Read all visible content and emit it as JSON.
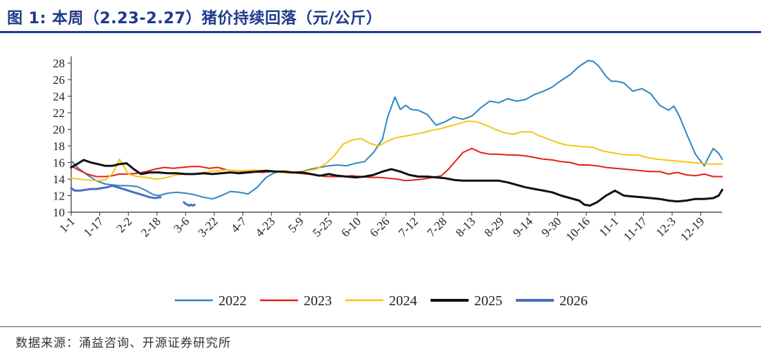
{
  "title": "图 1:  本周（2.23-2.27）猪价持续回落（元/公斤）",
  "source": "数据来源：涌益咨询、开源证券研究所",
  "chart_data": {
    "type": "line",
    "ylabel": "元/公斤",
    "ylim": [
      10,
      28.8
    ],
    "yticks": [
      10,
      12,
      14,
      16,
      18,
      20,
      22,
      24,
      26,
      28
    ],
    "xlim": [
      1,
      365
    ],
    "xticks": [
      {
        "label": "1-1",
        "day": 1
      },
      {
        "label": "1-17",
        "day": 17
      },
      {
        "label": "2-2",
        "day": 33
      },
      {
        "label": "2-18",
        "day": 49
      },
      {
        "label": "3-6",
        "day": 65
      },
      {
        "label": "3-22",
        "day": 81
      },
      {
        "label": "4-7",
        "day": 97
      },
      {
        "label": "4-23",
        "day": 113
      },
      {
        "label": "5-9",
        "day": 129
      },
      {
        "label": "5-25",
        "day": 145
      },
      {
        "label": "6-10",
        "day": 161
      },
      {
        "label": "6-26",
        "day": 177
      },
      {
        "label": "7-12",
        "day": 193
      },
      {
        "label": "7-28",
        "day": 209
      },
      {
        "label": "8-13",
        "day": 225
      },
      {
        "label": "8-29",
        "day": 241
      },
      {
        "label": "9-14",
        "day": 257
      },
      {
        "label": "9-30",
        "day": 273
      },
      {
        "label": "10-16",
        "day": 289
      },
      {
        "label": "11-1",
        "day": 305
      },
      {
        "label": "11-17",
        "day": 321
      },
      {
        "label": "12-3",
        "day": 337
      },
      {
        "label": "12-19",
        "day": 353
      }
    ],
    "series": [
      {
        "name": "2022",
        "color": "#2e86c1",
        "x": [
          1,
          5,
          10,
          15,
          20,
          24,
          28,
          33,
          38,
          43,
          47,
          50,
          55,
          60,
          65,
          70,
          75,
          80,
          85,
          90,
          95,
          100,
          105,
          110,
          115,
          120,
          125,
          130,
          135,
          140,
          145,
          150,
          155,
          160,
          165,
          170,
          175,
          178,
          182,
          185,
          188,
          191,
          195,
          200,
          205,
          210,
          215,
          220,
          225,
          230,
          235,
          240,
          245,
          250,
          255,
          260,
          265,
          270,
          275,
          280,
          285,
          290,
          293,
          296,
          300,
          303,
          306,
          310,
          315,
          320,
          325,
          330,
          335,
          338,
          341,
          345,
          350,
          355,
          357,
          360,
          363,
          365
        ],
        "y": [
          16.2,
          15.3,
          14.5,
          13.8,
          13.4,
          13.3,
          13.2,
          13.2,
          13.1,
          12.6,
          12.1,
          12.0,
          12.3,
          12.4,
          12.3,
          12.1,
          11.8,
          11.6,
          12.0,
          12.5,
          12.4,
          12.2,
          13.0,
          14.2,
          14.8,
          14.9,
          14.8,
          14.9,
          15.2,
          15.4,
          15.6,
          15.7,
          15.6,
          15.9,
          16.1,
          17.2,
          18.8,
          21.5,
          23.9,
          22.4,
          22.9,
          22.4,
          22.3,
          21.8,
          20.5,
          20.9,
          21.5,
          21.2,
          21.6,
          22.6,
          23.4,
          23.2,
          23.7,
          23.4,
          23.6,
          24.2,
          24.6,
          25.1,
          25.9,
          26.6,
          27.6,
          28.3,
          28.2,
          27.6,
          26.4,
          25.8,
          25.8,
          25.6,
          24.6,
          24.9,
          24.3,
          22.9,
          22.3,
          22.8,
          21.6,
          19.5,
          17.0,
          15.6,
          16.5,
          17.7,
          17.1,
          16.4
        ]
      },
      {
        "name": "2023",
        "color": "#e32119",
        "x": [
          1,
          5,
          10,
          15,
          20,
          24,
          28,
          33,
          38,
          43,
          48,
          53,
          58,
          63,
          68,
          73,
          78,
          83,
          88,
          93,
          98,
          103,
          108,
          113,
          118,
          123,
          128,
          133,
          138,
          143,
          148,
          153,
          158,
          163,
          168,
          173,
          178,
          183,
          188,
          193,
          198,
          203,
          208,
          212,
          216,
          220,
          225,
          230,
          235,
          240,
          245,
          250,
          255,
          260,
          265,
          270,
          275,
          280,
          285,
          290,
          295,
          300,
          305,
          310,
          315,
          320,
          325,
          330,
          335,
          340,
          345,
          350,
          355,
          360,
          365
        ],
        "y": [
          15.6,
          15.1,
          14.6,
          14.3,
          14.3,
          14.4,
          14.6,
          14.6,
          14.7,
          14.9,
          15.2,
          15.4,
          15.3,
          15.4,
          15.5,
          15.5,
          15.3,
          15.4,
          15.1,
          15.0,
          14.9,
          14.9,
          14.8,
          14.9,
          14.9,
          14.8,
          14.7,
          14.6,
          14.5,
          14.3,
          14.3,
          14.3,
          14.4,
          14.3,
          14.2,
          14.2,
          14.1,
          14.0,
          13.8,
          13.9,
          14.0,
          14.2,
          14.4,
          15.2,
          16.2,
          17.2,
          17.7,
          17.2,
          17.0,
          17.0,
          16.9,
          16.9,
          16.8,
          16.6,
          16.4,
          16.3,
          16.1,
          16.0,
          15.7,
          15.7,
          15.6,
          15.4,
          15.3,
          15.2,
          15.1,
          15.0,
          14.9,
          14.9,
          14.6,
          14.8,
          14.5,
          14.4,
          14.6,
          14.3,
          14.3
        ]
      },
      {
        "name": "2024",
        "color": "#f5c518",
        "x": [
          1,
          5,
          10,
          15,
          20,
          24,
          28,
          33,
          38,
          43,
          48,
          53,
          58,
          63,
          68,
          73,
          78,
          83,
          88,
          93,
          98,
          103,
          108,
          113,
          118,
          123,
          128,
          133,
          138,
          143,
          148,
          153,
          158,
          163,
          168,
          173,
          178,
          183,
          188,
          193,
          198,
          203,
          208,
          213,
          218,
          223,
          228,
          233,
          238,
          243,
          248,
          253,
          258,
          263,
          268,
          273,
          278,
          283,
          288,
          293,
          298,
          303,
          308,
          313,
          318,
          323,
          328,
          333,
          338,
          343,
          348,
          353,
          358,
          363,
          365
        ],
        "y": [
          14.1,
          14.0,
          13.9,
          13.8,
          13.9,
          14.6,
          16.4,
          14.6,
          14.3,
          14.2,
          14.0,
          14.1,
          14.4,
          14.6,
          14.6,
          14.7,
          14.9,
          15.0,
          15.1,
          15.0,
          15.0,
          15.1,
          15.0,
          14.9,
          14.8,
          14.7,
          14.8,
          15.0,
          15.2,
          15.8,
          16.8,
          18.2,
          18.7,
          18.9,
          18.3,
          18.0,
          18.6,
          19.0,
          19.2,
          19.4,
          19.6,
          19.9,
          20.1,
          20.4,
          20.7,
          21.0,
          20.9,
          20.5,
          20.0,
          19.6,
          19.4,
          19.7,
          19.7,
          19.2,
          18.8,
          18.4,
          18.1,
          18.0,
          17.9,
          17.8,
          17.4,
          17.2,
          17.0,
          16.9,
          16.9,
          16.6,
          16.4,
          16.3,
          16.2,
          16.1,
          16.0,
          15.9,
          15.8,
          15.8,
          15.8
        ]
      },
      {
        "name": "2025",
        "color": "#111111",
        "x": [
          1,
          5,
          8,
          12,
          16,
          20,
          24,
          28,
          32,
          36,
          40,
          45,
          50,
          55,
          60,
          65,
          70,
          75,
          80,
          85,
          90,
          95,
          100,
          105,
          110,
          115,
          120,
          125,
          130,
          135,
          140,
          145,
          150,
          155,
          160,
          165,
          170,
          175,
          180,
          185,
          190,
          195,
          200,
          205,
          210,
          215,
          220,
          225,
          230,
          235,
          240,
          245,
          250,
          255,
          260,
          265,
          270,
          275,
          280,
          285,
          288,
          291,
          295,
          300,
          305,
          310,
          315,
          320,
          325,
          330,
          335,
          340,
          345,
          350,
          355,
          360,
          363,
          365
        ],
        "y": [
          15.4,
          15.9,
          16.3,
          16.0,
          15.8,
          15.6,
          15.6,
          15.8,
          15.9,
          15.2,
          14.6,
          14.8,
          14.8,
          14.7,
          14.7,
          14.6,
          14.6,
          14.7,
          14.6,
          14.7,
          14.8,
          14.7,
          14.8,
          14.9,
          15.0,
          14.9,
          14.9,
          14.8,
          14.8,
          14.6,
          14.4,
          14.6,
          14.4,
          14.3,
          14.2,
          14.3,
          14.5,
          14.9,
          15.2,
          14.9,
          14.5,
          14.3,
          14.3,
          14.2,
          14.1,
          13.9,
          13.8,
          13.8,
          13.8,
          13.8,
          13.8,
          13.6,
          13.3,
          13.0,
          12.8,
          12.6,
          12.4,
          12.0,
          11.7,
          11.4,
          10.9,
          10.8,
          11.2,
          12.0,
          12.6,
          12.0,
          11.9,
          11.8,
          11.7,
          11.6,
          11.4,
          11.3,
          11.4,
          11.6,
          11.6,
          11.7,
          12.0,
          12.7
        ]
      },
      {
        "name": "2026",
        "color": "#4a6fbe",
        "x": [
          1,
          3,
          6,
          9,
          12,
          15,
          18,
          21,
          24,
          27,
          30,
          33,
          36,
          39,
          42,
          45,
          48,
          51,
          63,
          64,
          65,
          66,
          67,
          68,
          69,
          70
        ],
        "y": [
          12.9,
          12.6,
          12.6,
          12.7,
          12.8,
          12.8,
          12.9,
          13.0,
          13.2,
          13.0,
          12.8,
          12.6,
          12.4,
          12.2,
          12.0,
          11.8,
          11.7,
          11.8,
          null,
          11.2,
          11.0,
          10.9,
          10.8,
          10.9,
          10.8,
          10.9
        ]
      }
    ]
  }
}
